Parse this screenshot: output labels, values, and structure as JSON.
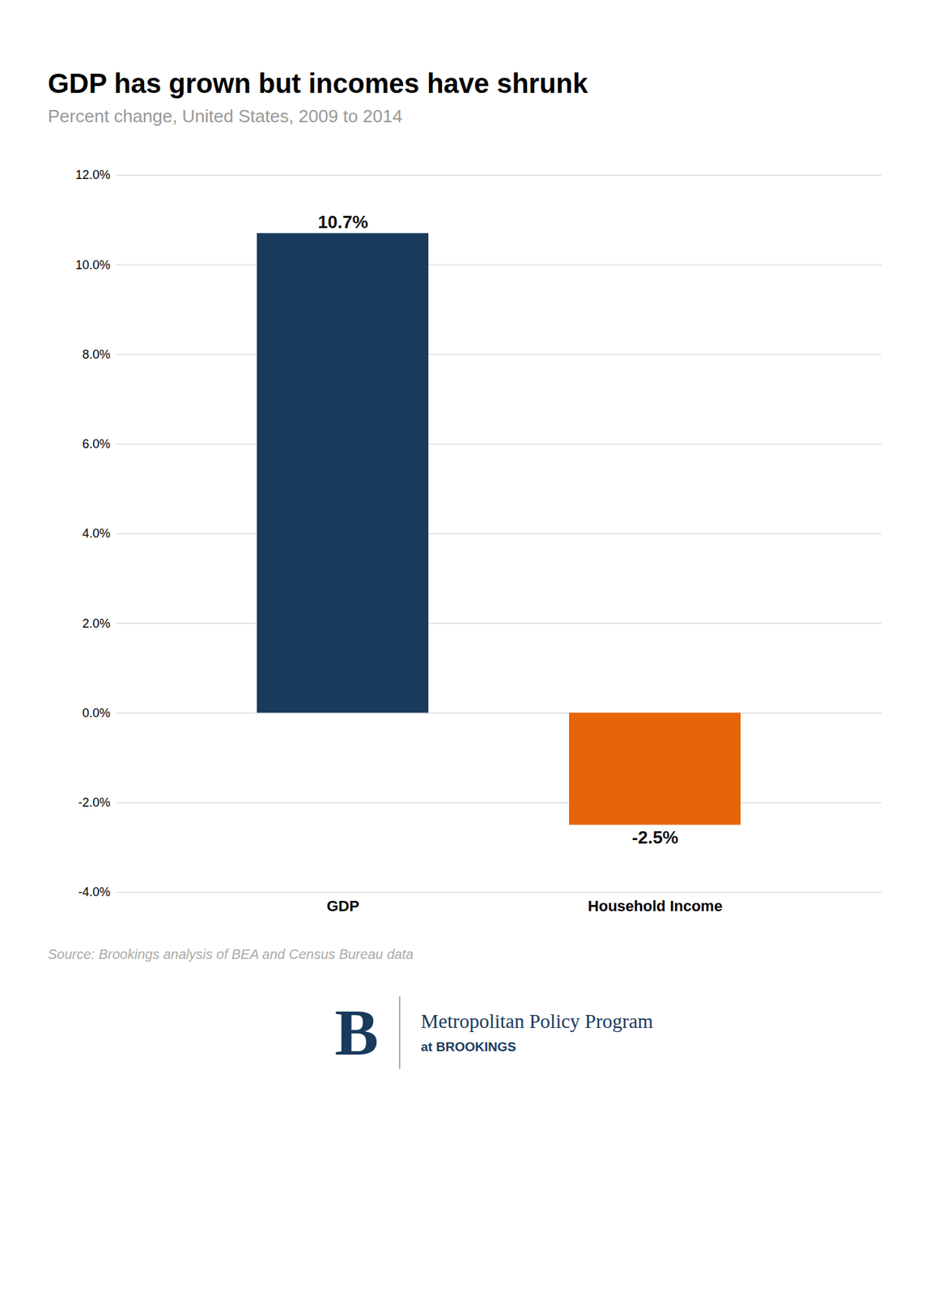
{
  "chart_data": {
    "type": "bar",
    "title": "GDP has grown but incomes have shrunk",
    "subtitle": "Percent change, United States, 2009 to 2014",
    "categories": [
      "GDP",
      "Household Income"
    ],
    "values": [
      0.107,
      -0.025
    ],
    "value_labels": [
      "10.7%",
      "-2.5%"
    ],
    "colors": [
      "#1a3a5c",
      "#e8640a"
    ],
    "ylim": [
      -0.04,
      0.12
    ],
    "yticks": [
      {
        "value": -0.04,
        "label": "-4.0%"
      },
      {
        "value": -0.02,
        "label": "-2.0%"
      },
      {
        "value": 0.0,
        "label": "0.0%"
      },
      {
        "value": 0.02,
        "label": "2.0%"
      },
      {
        "value": 0.04,
        "label": "4.0%"
      },
      {
        "value": 0.06,
        "label": "6.0%"
      },
      {
        "value": 0.08,
        "label": "8.0%"
      },
      {
        "value": 0.1,
        "label": "10.0%"
      },
      {
        "value": 0.12,
        "label": "12.0%"
      }
    ],
    "grid": true,
    "data_labels": true,
    "source": "Source: Brookings analysis of BEA and Census Bureau data",
    "annotations": [
      "B",
      "Metropolitan Policy Program",
      "at BROOKINGS"
    ]
  }
}
